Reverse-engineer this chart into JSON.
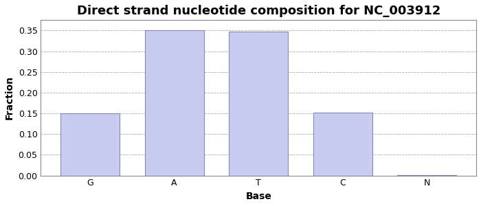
{
  "title": "Direct strand nucleotide composition for NC_003912",
  "xlabel": "Base",
  "ylabel": "Fraction",
  "categories": [
    "G",
    "A",
    "T",
    "C",
    "N"
  ],
  "values": [
    0.15,
    0.35,
    0.347,
    0.152,
    0.001
  ],
  "bar_color": "#c8ccf0",
  "bar_edgecolor": "#8888aa",
  "ylim": [
    0,
    0.375
  ],
  "yticks": [
    0.0,
    0.05,
    0.1,
    0.15,
    0.2,
    0.25,
    0.3,
    0.35
  ],
  "title_fontsize": 13,
  "axis_label_fontsize": 10,
  "tick_fontsize": 9,
  "background_color": "#ffffff",
  "grid_color": "#aaaaaa",
  "spine_color": "#888888"
}
